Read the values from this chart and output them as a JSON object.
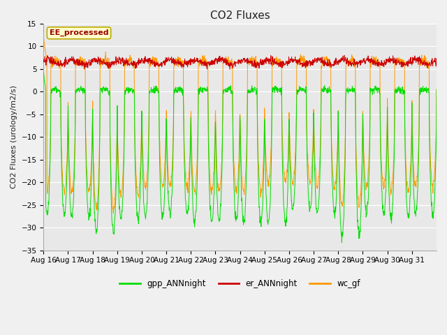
{
  "title": "CO2 Fluxes",
  "ylabel": "CO2 Fluxes (urology/m2/s)",
  "xlabels": [
    "Aug 16",
    "Aug 17",
    "Aug 18",
    "Aug 19",
    "Aug 20",
    "Aug 21",
    "Aug 22",
    "Aug 23",
    "Aug 24",
    "Aug 25",
    "Aug 26",
    "Aug 27",
    "Aug 28",
    "Aug 29",
    "Aug 30",
    "Aug 31"
  ],
  "ylim": [
    -35,
    15
  ],
  "yticks": [
    -35,
    -30,
    -25,
    -20,
    -15,
    -10,
    -5,
    0,
    5,
    10,
    15
  ],
  "color_gpp": "#00dd00",
  "color_er": "#cc0000",
  "color_wc": "#ff9900",
  "annotation_text": "EE_processed",
  "annotation_color": "#990000",
  "annotation_bg": "#ffffcc",
  "legend_entries": [
    "gpp_ANNnight",
    "er_ANNnight",
    "wc_gf"
  ],
  "n_days": 16,
  "pts_per_day": 96,
  "fig_bg": "#f0f0f0",
  "axes_bg": "#e8e8e8",
  "grid_color": "#ffffff",
  "title_fontsize": 11,
  "label_fontsize": 8,
  "tick_fontsize": 7.5
}
